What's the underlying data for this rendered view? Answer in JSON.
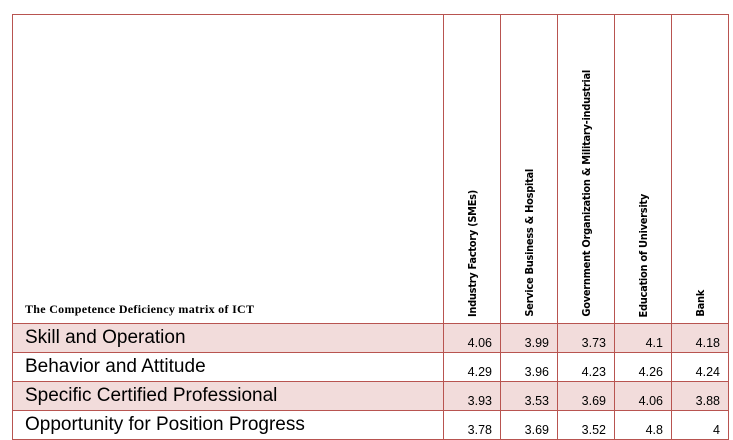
{
  "table": {
    "corner": "The Competence Deficiency matrix of ICT",
    "columns": [
      "Industry Factory (SMEs)",
      "Service Business & Hospital",
      "Government Organization & Military-industrial",
      "Education of University",
      "Bank"
    ],
    "rows": [
      {
        "label": "Skill and Operation",
        "values": [
          4.06,
          3.99,
          3.73,
          4.1,
          4.18
        ]
      },
      {
        "label": "Behavior and Attitude",
        "values": [
          4.29,
          3.96,
          4.23,
          4.26,
          4.24
        ]
      },
      {
        "label": "Specific Certified Professional",
        "values": [
          3.93,
          3.53,
          3.69,
          4.06,
          3.88
        ]
      },
      {
        "label": "Opportunity for Position Progress",
        "values": [
          3.78,
          3.69,
          3.52,
          4.8,
          4
        ]
      }
    ]
  }
}
